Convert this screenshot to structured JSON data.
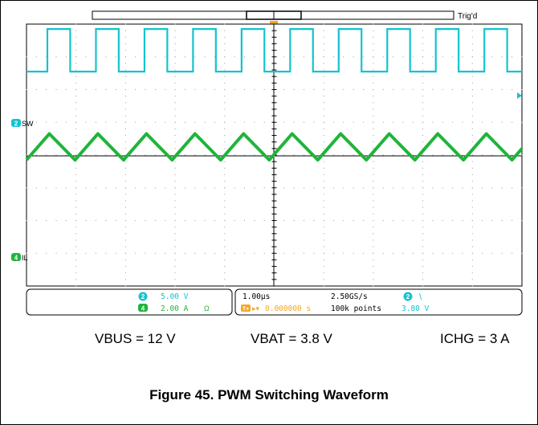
{
  "scope": {
    "trigger_status": "Trig'd",
    "trigger_marker": "T",
    "channels": [
      {
        "num": "2",
        "name": "SW",
        "scale": "5.00 V",
        "color": "#14c3cf"
      },
      {
        "num": "4",
        "name": "IL",
        "scale": "2.00 A",
        "color": "#1fb43a"
      }
    ],
    "ch4_coupling_symbol": "Ω",
    "timebase": "1.00µs",
    "sample_rate": "2.50GS/s",
    "record_length": "100k points",
    "trigger_delay": "0.000000 s",
    "trigger_delay_icon": "T+",
    "trigger_channel": "2",
    "trigger_slope_symbol": "\\",
    "trigger_level": "3.80 V"
  },
  "conditions": {
    "vbus": "VBUS = 12 V",
    "vbat": "VBAT = 3.8 V",
    "ichg": "ICHG = 3 A"
  },
  "figure_title": "Figure 45. PWM Switching Waveform",
  "chart_data": {
    "type": "line",
    "x_divisions": 10,
    "x_unit_per_div": "1.00µs",
    "y_divisions": 8,
    "series": [
      {
        "name": "SW",
        "channel": "2",
        "color": "#14c3cf",
        "shape": "square",
        "period_div": 0.98,
        "duty": 0.47,
        "high_div": 3.85,
        "low_div": 2.55
      },
      {
        "name": "IL",
        "channel": "4",
        "color": "#1fb43a",
        "shape": "triangle",
        "period_div": 0.98,
        "peak_div": 0.65,
        "trough_div": -0.15
      }
    ]
  }
}
